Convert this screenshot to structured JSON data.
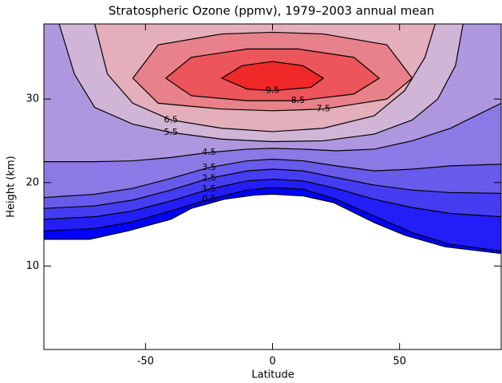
{
  "chart_data": {
    "type": "contour",
    "title": "Stratospheric Ozone (ppmv), 1979–2003 annual mean",
    "xlabel": "Latitude",
    "ylabel": "Height (km)",
    "xlim": [
      -90,
      90
    ],
    "ylim": [
      0,
      39
    ],
    "xticks": [
      -50,
      0,
      50
    ],
    "yticks": [
      10,
      20,
      30
    ],
    "colormap": [
      {
        "value": 0,
        "color": "#0000ff"
      },
      {
        "value": 6.5,
        "color": "#e2c4d4"
      },
      {
        "value": 10,
        "color": "#f02828"
      }
    ],
    "boundary": {
      "x": [
        -90,
        -72,
        -57,
        -40,
        -32,
        -19,
        -7,
        0,
        12,
        24,
        40,
        52,
        68,
        90
      ],
      "y": [
        13.2,
        13.2,
        14.2,
        15.6,
        16.9,
        18.0,
        18.5,
        18.6,
        18.4,
        17.6,
        15.2,
        13.7,
        12.3,
        11.5
      ]
    },
    "contours": [
      {
        "level": 0.5,
        "x": [
          -90,
          -70,
          -55,
          -40,
          -25,
          -10,
          0,
          12,
          25,
          40,
          55,
          70,
          90
        ],
        "y": [
          14.2,
          14.5,
          15.3,
          16.6,
          18,
          19.1,
          19.4,
          19.2,
          18,
          16,
          14,
          12.6,
          11.8
        ]
      },
      {
        "level": 1.5,
        "x": [
          -90,
          -70,
          -55,
          -40,
          -25,
          -10,
          0,
          12,
          25,
          40,
          55,
          70,
          90
        ],
        "y": [
          15.6,
          15.9,
          16.6,
          17.8,
          19.2,
          20.2,
          20.4,
          20.2,
          19.3,
          18,
          17,
          16.3,
          15.9
        ]
      },
      {
        "level": 2.5,
        "x": [
          -90,
          -70,
          -55,
          -40,
          -25,
          -10,
          0,
          12,
          25,
          40,
          55,
          70,
          90
        ],
        "y": [
          16.9,
          17.2,
          17.9,
          19.1,
          20.5,
          21.4,
          21.6,
          21.4,
          20.6,
          19.7,
          19.1,
          18.8,
          18.7
        ]
      },
      {
        "level": 3.5,
        "x": [
          -90,
          -70,
          -55,
          -40,
          -25,
          -10,
          0,
          12,
          25,
          40,
          55,
          70,
          90
        ],
        "y": [
          18.2,
          18.6,
          19.3,
          20.5,
          21.8,
          22.6,
          22.8,
          22.6,
          22,
          21.4,
          21.6,
          22,
          22.2
        ]
      },
      {
        "level": 4.5,
        "x": [
          -90,
          -70,
          -55,
          -40,
          -25,
          -10,
          0,
          12,
          25,
          40,
          55,
          70,
          80,
          90
        ],
        "y": [
          22.5,
          22.5,
          22.6,
          23,
          23.6,
          24,
          24.1,
          24,
          23.8,
          24,
          25,
          26.5,
          28,
          29.5
        ]
      },
      {
        "level": 5.5,
        "x": [
          -84,
          -78,
          -70,
          -55,
          -40,
          -20,
          0,
          20,
          40,
          55,
          65,
          72,
          75
        ],
        "y": [
          39,
          33,
          29,
          27,
          26,
          25.2,
          24.9,
          25,
          25.8,
          27.5,
          30,
          34,
          39
        ]
      },
      {
        "level": 6.5,
        "x": [
          -70,
          -65,
          -55,
          -40,
          -20,
          0,
          20,
          40,
          52,
          60,
          64
        ],
        "y": [
          39,
          33,
          29.5,
          27.5,
          26.5,
          26.1,
          26.5,
          28,
          31,
          35,
          39
        ]
      },
      {
        "level": 7.5,
        "x": [
          -55,
          -45,
          -20,
          0,
          20,
          45,
          55,
          45,
          20,
          0,
          -20,
          -45
        ],
        "y": [
          32.5,
          29.5,
          28.8,
          28.6,
          28.8,
          30,
          32.5,
          36.5,
          37.8,
          38,
          37.8,
          36.5
        ]
      },
      {
        "level": 8.5,
        "x": [
          -42,
          -32,
          -10,
          10,
          32,
          42,
          32,
          10,
          -10,
          -32
        ],
        "y": [
          32.5,
          30.4,
          29.8,
          29.8,
          30.6,
          32.5,
          35,
          36,
          36,
          35
        ]
      },
      {
        "level": 9.5,
        "x": [
          -20,
          -10,
          0,
          15,
          20,
          12,
          0,
          -12
        ],
        "y": [
          32.5,
          31.2,
          31,
          31.4,
          32.5,
          34,
          34.5,
          34
        ]
      }
    ]
  }
}
